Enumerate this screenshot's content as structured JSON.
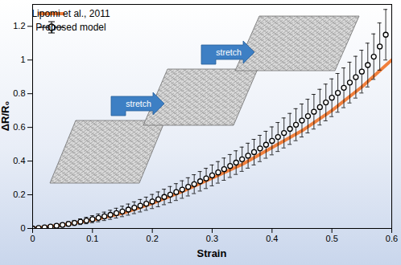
{
  "chart_data": {
    "type": "line",
    "x_label": "Strain",
    "y_label": "ΔR/R₀",
    "xlim": [
      0,
      0.6
    ],
    "xticks": [
      0,
      0.1,
      0.2,
      0.3,
      0.4,
      0.5,
      0.6
    ],
    "ylim": [
      0,
      1.33
    ],
    "yticks": [
      0,
      0.2,
      0.4,
      0.6,
      0.8,
      1,
      1.2
    ],
    "legend": "upper left",
    "annotations": [
      "stretch",
      "stretch"
    ],
    "series": [
      {
        "name": "Lipomi et al., 2011",
        "type": "line",
        "color": "#f07f3c",
        "x": [
          0,
          0.05,
          0.1,
          0.15,
          0.2,
          0.25,
          0.3,
          0.35,
          0.4,
          0.45,
          0.5,
          0.55,
          0.6
        ],
        "values": [
          0,
          0.02,
          0.05,
          0.09,
          0.15,
          0.22,
          0.3,
          0.38,
          0.48,
          0.58,
          0.7,
          0.84,
          1.0
        ]
      },
      {
        "name": "Proposed model",
        "type": "scatter",
        "color": "#000000",
        "marker": "circle",
        "x": [
          0,
          0.01,
          0.02,
          0.03,
          0.04,
          0.05,
          0.06,
          0.07,
          0.08,
          0.09,
          0.1,
          0.11,
          0.12,
          0.13,
          0.14,
          0.15,
          0.16,
          0.17,
          0.18,
          0.19,
          0.2,
          0.21,
          0.22,
          0.23,
          0.24,
          0.25,
          0.26,
          0.27,
          0.28,
          0.29,
          0.3,
          0.31,
          0.32,
          0.33,
          0.34,
          0.35,
          0.36,
          0.37,
          0.38,
          0.39,
          0.4,
          0.41,
          0.42,
          0.43,
          0.44,
          0.45,
          0.46,
          0.47,
          0.48,
          0.49,
          0.5,
          0.51,
          0.52,
          0.53,
          0.54,
          0.55,
          0.56,
          0.57,
          0.58,
          0.59
        ],
        "values": [
          0,
          0.003,
          0.007,
          0.011,
          0.016,
          0.021,
          0.027,
          0.033,
          0.04,
          0.047,
          0.055,
          0.063,
          0.072,
          0.081,
          0.091,
          0.101,
          0.112,
          0.123,
          0.135,
          0.147,
          0.16,
          0.173,
          0.187,
          0.201,
          0.216,
          0.231,
          0.247,
          0.263,
          0.28,
          0.297,
          0.315,
          0.333,
          0.352,
          0.371,
          0.391,
          0.411,
          0.432,
          0.453,
          0.475,
          0.497,
          0.52,
          0.543,
          0.567,
          0.591,
          0.616,
          0.641,
          0.667,
          0.693,
          0.72,
          0.748,
          0.776,
          0.805,
          0.835,
          0.866,
          0.898,
          0.931,
          0.97,
          1.02,
          1.08,
          1.15
        ],
        "errors": [
          0,
          0.003,
          0.005,
          0.007,
          0.009,
          0.011,
          0.013,
          0.015,
          0.017,
          0.019,
          0.021,
          0.023,
          0.025,
          0.027,
          0.029,
          0.031,
          0.033,
          0.035,
          0.037,
          0.039,
          0.042,
          0.044,
          0.046,
          0.048,
          0.05,
          0.052,
          0.054,
          0.056,
          0.058,
          0.06,
          0.062,
          0.064,
          0.066,
          0.068,
          0.07,
          0.072,
          0.074,
          0.076,
          0.078,
          0.08,
          0.083,
          0.086,
          0.089,
          0.092,
          0.095,
          0.098,
          0.1,
          0.103,
          0.106,
          0.109,
          0.112,
          0.115,
          0.118,
          0.121,
          0.124,
          0.127,
          0.13,
          0.135,
          0.14,
          0.15
        ]
      }
    ]
  }
}
